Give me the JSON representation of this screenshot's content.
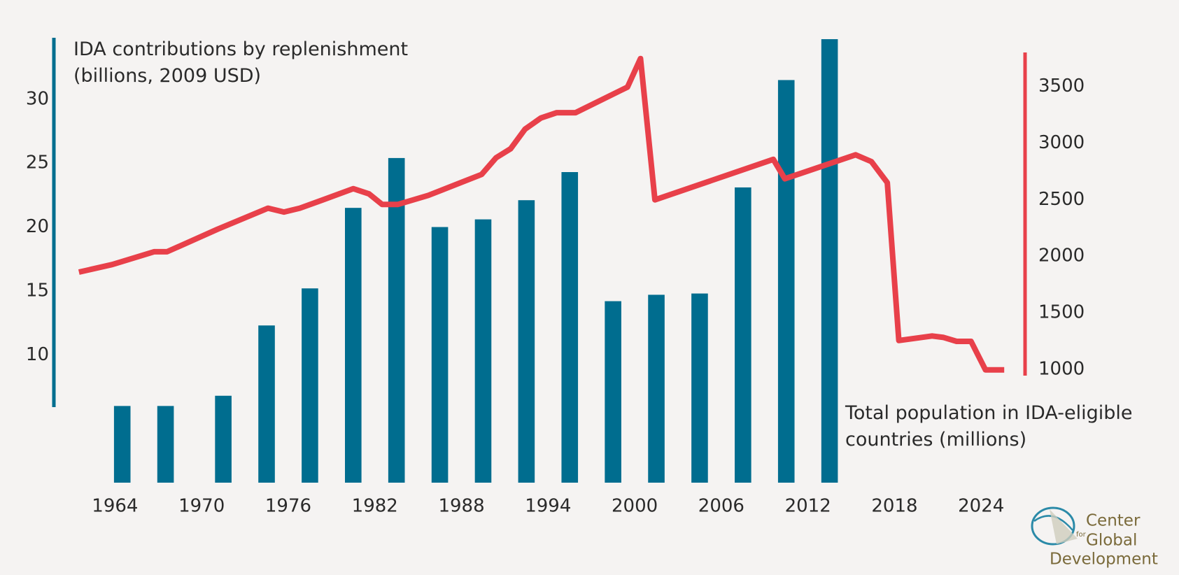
{
  "chart_data": {
    "type": "combo",
    "xlim": [
      1961,
      2026
    ],
    "xticks": [
      1964,
      1970,
      1976,
      1982,
      1988,
      1994,
      2000,
      2006,
      2012,
      2018,
      2024
    ],
    "ylim": [
      0,
      35
    ],
    "yticks": [
      10,
      15,
      20,
      25,
      30
    ],
    "y2lim": [
      0,
      3950
    ],
    "y2ticks": [
      1000,
      1500,
      2000,
      2500,
      3000,
      3500
    ],
    "series": [
      {
        "name": "IDA contributions by replenishment (billions, 2009 USD)",
        "type": "bar",
        "color": "#006d8f",
        "x": [
          1964.5,
          1967.5,
          1971.5,
          1974.5,
          1977.5,
          1980.5,
          1983.5,
          1986.5,
          1989.5,
          1992.5,
          1995.5,
          1998.5,
          2001.5,
          2004.5,
          2007.5,
          2010.5,
          2013.5
        ],
        "values": [
          6.0,
          6.0,
          6.8,
          12.3,
          15.2,
          21.5,
          25.4,
          20.0,
          20.6,
          22.1,
          24.3,
          14.2,
          14.7,
          14.8,
          23.1,
          31.5,
          34.7
        ]
      },
      {
        "name": "Total population in IDA-eligible countries (millions)",
        "type": "line",
        "axis": "y2",
        "color": "#e8404a",
        "x": [
          1961.5,
          1963.8,
          1966.7,
          1967.6,
          1971.1,
          1974.6,
          1975.7,
          1976.8,
          1978.4,
          1980.5,
          1981.6,
          1982.5,
          1983.6,
          1985.7,
          1989.4,
          1990.4,
          1991.4,
          1992.4,
          1993.5,
          1994.6,
          1995.9,
          1999.5,
          2000.4,
          2001.4,
          2009.6,
          2010.4,
          2015.3,
          2016.4,
          2017.5,
          2018.3,
          2020.6,
          2021.4,
          2022.3,
          2023.3,
          2024.3,
          2025.6
        ],
        "values": [
          1859,
          1926,
          2039,
          2039,
          2238,
          2424,
          2390,
          2424,
          2497,
          2596,
          2550,
          2457,
          2457,
          2537,
          2722,
          2869,
          2948,
          3121,
          3220,
          3267,
          3267,
          3493,
          3745,
          2497,
          2855,
          2683,
          2895,
          2835,
          2649,
          1255,
          1295,
          1282,
          1248,
          1248,
          996,
          996
        ]
      }
    ],
    "logo": [
      "Center",
      "for",
      "Global",
      "Development"
    ]
  }
}
